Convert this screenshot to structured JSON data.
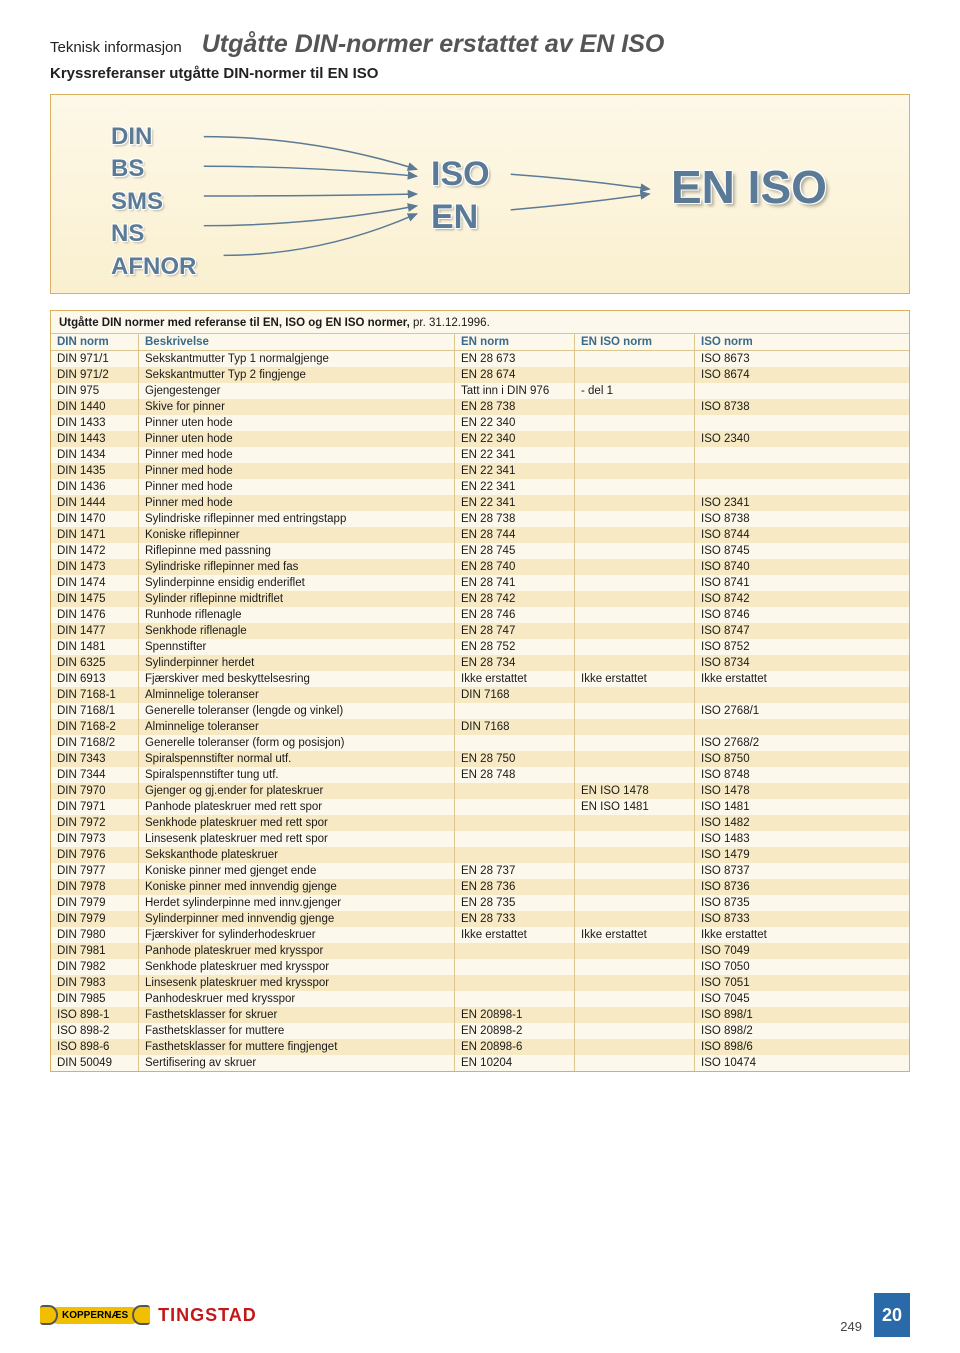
{
  "header": {
    "section": "Teknisk informasjon",
    "title": "Utgåtte DIN-normer erstattet av EN ISO",
    "subtitle": "Kryssreferanser utgåtte DIN-normer til EN ISO"
  },
  "diagram": {
    "bg_gradient_top": "#fdf8e8",
    "bg_gradient_bottom": "#faf0d0",
    "border_color": "#d8b060",
    "text_color": "#5a7a95",
    "left": [
      "DIN",
      "BS",
      "SMS",
      "NS",
      "AFNOR"
    ],
    "mid": [
      "ISO",
      "EN"
    ],
    "right": "EN ISO"
  },
  "table": {
    "caption_prefix": "Utgåtte DIN normer med referanse til EN, ISO og EN ISO normer,",
    "caption_suffix": " pr. 31.12.1996.",
    "header_cells": [
      "DIN norm",
      "Beskrivelse",
      "EN norm",
      "EN ISO norm",
      "ISO norm"
    ],
    "header_bg": "#fdf8ec",
    "header_color": "#3a6a8a",
    "row_bg_odd": "#fdf8ec",
    "row_bg_even": "#f6e9c4",
    "border_color": "#dcc68f",
    "rows": [
      [
        "DIN 971/1",
        "Sekskantmutter Typ 1 normalgjenge",
        "EN 28 673",
        "",
        "ISO 8673"
      ],
      [
        "DIN 971/2",
        "Sekskantmutter Typ 2 fingjenge",
        "EN 28 674",
        "",
        "ISO 8674"
      ],
      [
        "DIN 975",
        "Gjengestenger",
        "Tatt inn i DIN 976",
        "- del 1",
        ""
      ],
      [
        "DIN 1440",
        "Skive for pinner",
        "EN 28 738",
        "",
        "ISO 8738"
      ],
      [
        "DIN 1433",
        "Pinner uten hode",
        "EN 22 340",
        "",
        ""
      ],
      [
        "DIN 1443",
        "Pinner uten hode",
        "EN 22 340",
        "",
        "ISO 2340"
      ],
      [
        "DIN 1434",
        "Pinner med hode",
        "EN 22 341",
        "",
        ""
      ],
      [
        "DIN 1435",
        "Pinner med hode",
        "EN 22 341",
        "",
        ""
      ],
      [
        "DIN 1436",
        "Pinner med hode",
        "EN 22 341",
        "",
        ""
      ],
      [
        "DIN 1444",
        "Pinner med hode",
        "EN 22 341",
        "",
        "ISO 2341"
      ],
      [
        "DIN 1470",
        "Sylindriske riflepinner med entringstapp",
        "EN 28 738",
        "",
        "ISO 8738"
      ],
      [
        "DIN 1471",
        "Koniske riflepinner",
        "EN 28 744",
        "",
        "ISO 8744"
      ],
      [
        "DIN 1472",
        "Riflepinne med passning",
        "EN 28 745",
        "",
        "ISO 8745"
      ],
      [
        "DIN 1473",
        "Sylindriske riflepinner med fas",
        "EN 28 740",
        "",
        "ISO 8740"
      ],
      [
        "DIN 1474",
        "Sylinderpinne ensidig enderiflet",
        "EN 28 741",
        "",
        "ISO 8741"
      ],
      [
        "DIN 1475",
        "Sylinder riflepinne midtriflet",
        "EN 28 742",
        "",
        "ISO 8742"
      ],
      [
        "DIN 1476",
        "Runhode riflenagle",
        "EN 28 746",
        "",
        "ISO 8746"
      ],
      [
        "DIN 1477",
        "Senkhode riflenagle",
        "EN 28 747",
        "",
        "ISO 8747"
      ],
      [
        "DIN 1481",
        "Spennstifter",
        "EN 28 752",
        "",
        "ISO 8752"
      ],
      [
        "DIN 6325",
        "Sylinderpinner herdet",
        "EN 28 734",
        "",
        "ISO 8734"
      ],
      [
        "DIN 6913",
        "Fjærskiver med beskyttelsesring",
        "Ikke erstattet",
        "Ikke erstattet",
        "Ikke erstattet"
      ],
      [
        "DIN 7168-1",
        "Alminnelige toleranser",
        "DIN 7168",
        "",
        ""
      ],
      [
        "DIN 7168/1",
        "Generelle toleranser (lengde og vinkel)",
        "",
        "",
        "ISO 2768/1"
      ],
      [
        "DIN 7168-2",
        "Alminnelige toleranser",
        "DIN 7168",
        "",
        ""
      ],
      [
        "DIN 7168/2",
        "Generelle toleranser (form og posisjon)",
        "",
        "",
        "ISO 2768/2"
      ],
      [
        "DIN 7343",
        "Spiralspennstifter normal utf.",
        "EN 28 750",
        "",
        "ISO 8750"
      ],
      [
        "DIN 7344",
        "Spiralspennstifter tung utf.",
        "EN 28 748",
        "",
        "ISO 8748"
      ],
      [
        "DIN 7970",
        "Gjenger og gj.ender for plateskruer",
        "",
        "EN ISO 1478",
        "ISO 1478"
      ],
      [
        "DIN 7971",
        "Panhode plateskruer med rett spor",
        "",
        "EN ISO 1481",
        "ISO 1481"
      ],
      [
        "DIN 7972",
        "Senkhode plateskruer med rett spor",
        "",
        "",
        "ISO 1482"
      ],
      [
        "DIN 7973",
        "Linsesenk plateskruer med rett spor",
        "",
        "",
        "ISO 1483"
      ],
      [
        "DIN 7976",
        "Sekskanthode plateskruer",
        "",
        "",
        "ISO 1479"
      ],
      [
        "DIN 7977",
        "Koniske pinner med gjenget ende",
        "EN 28 737",
        "",
        "ISO 8737"
      ],
      [
        "DIN 7978",
        "Koniske pinner med innvendig gjenge",
        "EN 28 736",
        "",
        "ISO 8736"
      ],
      [
        "DIN 7979",
        "Herdet sylinderpinne med innv.gjenger",
        "EN 28 735",
        "",
        "ISO 8735"
      ],
      [
        "DIN 7979",
        "Sylinderpinner med innvendig gjenge",
        "EN 28 733",
        "",
        "ISO 8733"
      ],
      [
        "DIN 7980",
        "Fjærskiver for sylinderhodeskruer",
        "Ikke erstattet",
        "Ikke erstattet",
        "Ikke erstattet"
      ],
      [
        "DIN 7981",
        "Panhode plateskruer med krysspor",
        "",
        "",
        "ISO 7049"
      ],
      [
        "DIN 7982",
        "Senkhode plateskruer med krysspor",
        "",
        "",
        "ISO 7050"
      ],
      [
        "DIN 7983",
        "Linsesenk plateskruer med krysspor",
        "",
        "",
        "ISO 7051"
      ],
      [
        "DIN 7985",
        "Panhodeskruer med krysspor",
        "",
        "",
        "ISO 7045"
      ],
      [
        "ISO 898-1",
        "Fasthetsklasser for skruer",
        "EN 20898-1",
        "",
        "ISO 898/1"
      ],
      [
        "ISO 898-2",
        "Fasthetsklasser for muttere",
        "EN 20898-2",
        "",
        "ISO 898/2"
      ],
      [
        "ISO 898-6",
        "Fasthetsklasser for muttere fingjenget",
        "EN 20898-6",
        "",
        "ISO 898/6"
      ],
      [
        "DIN 50049",
        "Sertifisering av skruer",
        "EN 10204",
        "",
        "ISO 10474"
      ]
    ]
  },
  "footer": {
    "logo1": "KOPPERNÆS",
    "logo2": "TINGSTAD",
    "tab": "20",
    "pageno": "249"
  }
}
